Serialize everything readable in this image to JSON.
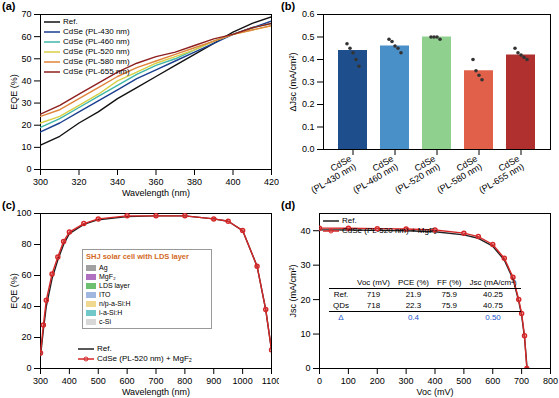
{
  "chart_data": [
    {
      "type": "line",
      "title": "(a)",
      "x_label": "Wavelength (nm)",
      "y_label": "EQE (%)",
      "x": [
        300,
        310,
        320,
        330,
        340,
        350,
        360,
        370,
        380,
        390,
        400,
        410,
        420
      ],
      "series": [
        {
          "name": "Ref.",
          "color": "#111111",
          "values": [
            11,
            15,
            21,
            26,
            32,
            37,
            42,
            47,
            52,
            57,
            62,
            66,
            69
          ]
        },
        {
          "name": "CdSe (PL-430 nm)",
          "color": "#1a3f8f",
          "values": [
            17,
            21,
            26,
            31,
            36,
            41,
            45,
            49,
            53,
            57,
            61,
            64,
            67
          ]
        },
        {
          "name": "CdSe (PL-460 nm)",
          "color": "#3fb7a8",
          "values": [
            19,
            23,
            28,
            33,
            38,
            43,
            47,
            50,
            54,
            58,
            61,
            64,
            66
          ]
        },
        {
          "name": "CdSe (PL-520 nm)",
          "color": "#d8cf45",
          "values": [
            21,
            24,
            29,
            34,
            40,
            44,
            48,
            51,
            54,
            58,
            61,
            63,
            65
          ]
        },
        {
          "name": "CdSe (PL-580 nm)",
          "color": "#e0843c",
          "values": [
            24,
            27,
            32,
            37,
            42,
            46,
            49,
            52,
            55,
            58,
            61,
            63,
            65
          ]
        },
        {
          "name": "CdSe (PL-655 nm)",
          "color": "#8e1f1f",
          "values": [
            25,
            29,
            34,
            39,
            44,
            48,
            51,
            53,
            56,
            59,
            61,
            64,
            66
          ]
        }
      ],
      "xlim": [
        300,
        420
      ],
      "ylim": [
        0,
        70
      ],
      "xticks": [
        300,
        320,
        340,
        360,
        380,
        400,
        420
      ],
      "yticks": [
        0,
        10,
        20,
        30,
        40,
        50,
        60,
        70
      ],
      "legend": "upper left"
    },
    {
      "type": "bar",
      "title": "(b)",
      "y_label": "ΔJsc (mA/cm²)",
      "categories": [
        "CdSe(PL-430 nm)",
        "CdSe (PL-460 nm)",
        "CdSe (PL-520 nm)",
        "CdSe (PL-580 nm)",
        "CdSe (PL-655 nm)"
      ],
      "values": [
        0.44,
        0.46,
        0.5,
        0.35,
        0.42
      ],
      "colors": [
        "#1f4e8c",
        "#4a90c8",
        "#8fd08f",
        "#e0604a",
        "#b03030"
      ],
      "points": [
        [
          0.47,
          0.45,
          0.43,
          0.4,
          0.37
        ],
        [
          0.49,
          0.48,
          0.46,
          0.45,
          0.43
        ],
        [
          0.5,
          0.5,
          0.5,
          0.49
        ],
        [
          0.4,
          0.35,
          0.33,
          0.31
        ],
        [
          0.45,
          0.43,
          0.42,
          0.41,
          0.4
        ]
      ],
      "ylim": [
        0,
        0.6
      ],
      "yticks": [
        {
          "value": 0,
          "label": "0.0"
        },
        0.1,
        0.2,
        0.3,
        0.4,
        0.5,
        0.6
      ]
    },
    {
      "type": "line",
      "title": "(c)",
      "x_label": "Wavelength (nm)",
      "y_label": "EQE (%)",
      "x": [
        300,
        310,
        320,
        340,
        360,
        380,
        400,
        450,
        500,
        600,
        700,
        800,
        900,
        950,
        1000,
        1050,
        1080,
        1100
      ],
      "series": [
        {
          "name": "Ref.",
          "color": "#222222",
          "line_style": "solid",
          "values": [
            8,
            25,
            40,
            58,
            70,
            80,
            87,
            93,
            96,
            98,
            98.5,
            98.5,
            96.5,
            95,
            89,
            66,
            38,
            12
          ]
        },
        {
          "name": "CdSe (PL-520 nm) + MgF₂",
          "color": "#d62728",
          "marker": "circle",
          "values": [
            10,
            28,
            44,
            61,
            72,
            82,
            88,
            93.5,
            96.5,
            98.5,
            98.5,
            98.5,
            96.5,
            95,
            89,
            66,
            38,
            12
          ]
        }
      ],
      "xlim": [
        300,
        1100
      ],
      "ylim": [
        0,
        100
      ],
      "xticks": [
        300,
        400,
        500,
        600,
        700,
        800,
        900,
        1000,
        1100
      ],
      "yticks": [
        0,
        20,
        40,
        60,
        80,
        100
      ],
      "legend": "lower center",
      "inset": {
        "title": "SHJ solar cell with LDS layer",
        "layers": [
          {
            "name": "Ag",
            "color": "#a0a0a0"
          },
          {
            "name": "MgF₂",
            "color": "#b070c0"
          },
          {
            "name": "LDS layer",
            "color": "#6cc070"
          },
          {
            "name": "ITO",
            "color": "#a0b8e0"
          },
          {
            "name": "n/p-a-Si:H",
            "color": "#f0d890"
          },
          {
            "name": "i-a-Si:H",
            "color": "#70c8c8"
          },
          {
            "name": "c-Si",
            "color": "#d8d8d8"
          }
        ]
      }
    },
    {
      "type": "line",
      "title": "(d)",
      "x_label": "Voc (mV)",
      "y_label": "Jsc (mA/cm²)",
      "series": [
        {
          "name": "Ref.",
          "color": "#222222",
          "line_style": "solid",
          "x": [
            0,
            100,
            200,
            300,
            400,
            500,
            550,
            600,
            640,
            670,
            690,
            700,
            710,
            719
          ],
          "values": [
            40.25,
            40.2,
            40.1,
            40.0,
            39.7,
            38.8,
            37.8,
            35.5,
            31.5,
            26,
            19.5,
            15.5,
            9,
            0
          ]
        },
        {
          "name": "CdSe (PL-520 nm) + MgF₂",
          "color": "#d62728",
          "marker": "circle",
          "x": [
            0,
            100,
            200,
            300,
            400,
            500,
            550,
            600,
            640,
            670,
            690,
            700,
            710,
            718
          ],
          "values": [
            40.75,
            40.7,
            40.6,
            40.5,
            40.2,
            39.3,
            38.3,
            36,
            32,
            26.5,
            20,
            16,
            9.5,
            0
          ]
        }
      ],
      "xlim": [
        0,
        800
      ],
      "ylim": [
        0,
        45
      ],
      "xticks": [
        0,
        100,
        200,
        300,
        400,
        500,
        600,
        700,
        800
      ],
      "yticks": [
        0,
        10,
        20,
        30,
        40
      ],
      "legend": "upper left",
      "table": {
        "columns": [
          "",
          "Voc (mV)",
          "PCE (%)",
          "FF (%)",
          "Jsc (mA/cm²)"
        ],
        "rows": [
          [
            "Ref.",
            "719",
            "21.9",
            "75.9",
            "40.25"
          ],
          [
            "QDs",
            "718",
            "22.3",
            "75.9",
            "40.75"
          ],
          [
            "Δ",
            "",
            "0.4",
            "",
            "0.50"
          ]
        ]
      }
    }
  ]
}
